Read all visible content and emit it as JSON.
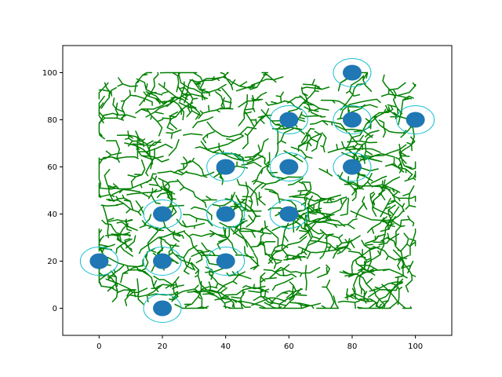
{
  "chart_data": {
    "type": "scatter",
    "title": "",
    "xlabel": "",
    "ylabel": "",
    "xlim": [
      -11.5,
      111.5
    ],
    "ylim": [
      -11.5,
      111.5
    ],
    "x_ticks": [
      0,
      20,
      40,
      60,
      80,
      100
    ],
    "y_ticks": [
      0,
      20,
      40,
      60,
      80,
      100
    ],
    "grid": false,
    "legend": "none",
    "colors": {
      "node_fill": "#1f77b4",
      "node_ring": "#17becf",
      "tree_edges": "#008000",
      "axes": "#000000"
    },
    "series": [
      {
        "points": [
          {
            "x": 80,
            "y": 100
          },
          {
            "x": 60,
            "y": 80
          },
          {
            "x": 80,
            "y": 80
          },
          {
            "x": 100,
            "y": 80
          },
          {
            "x": 40,
            "y": 60
          },
          {
            "x": 60,
            "y": 60
          },
          {
            "x": 80,
            "y": 60
          },
          {
            "x": 20,
            "y": 40
          },
          {
            "x": 40,
            "y": 40
          },
          {
            "x": 60,
            "y": 40
          },
          {
            "x": 0,
            "y": 20
          },
          {
            "x": 20,
            "y": 20
          },
          {
            "x": 40,
            "y": 20
          },
          {
            "x": 20,
            "y": 0
          }
        ]
      }
    ],
    "background_structure": "dense random branching tree of short green line segments covering x≈0–100, y≈0–100"
  }
}
